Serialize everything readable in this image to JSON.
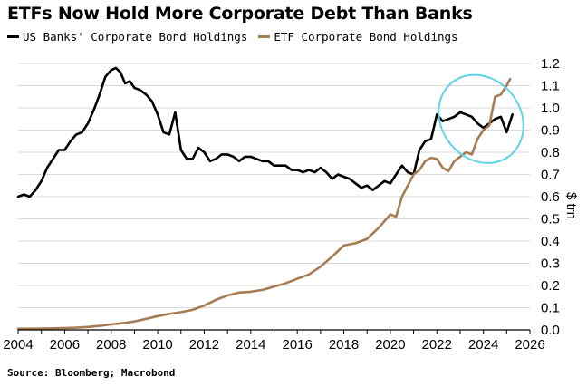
{
  "chart_data": {
    "type": "line",
    "title": "ETFs Now Hold More Corporate Debt Than Banks",
    "ylabel": "$ trn",
    "xlim": [
      2004,
      2026
    ],
    "ylim": [
      0.0,
      1.2
    ],
    "x_ticks": [
      2004,
      2006,
      2008,
      2010,
      2012,
      2014,
      2016,
      2018,
      2020,
      2022,
      2024,
      2026
    ],
    "x_tick_labels": [
      "2004",
      "2006",
      "2008",
      "2010",
      "2012",
      "2014",
      "2016",
      "2018",
      "2020",
      "2022",
      "2024",
      "2026"
    ],
    "y_ticks": [
      0.0,
      0.1,
      0.2,
      0.3,
      0.4,
      0.5,
      0.6,
      0.7,
      0.8,
      0.9,
      1.0,
      1.1,
      1.2
    ],
    "y_tick_labels": [
      "0.0",
      "0.1",
      "0.2",
      "0.3",
      "0.4",
      "0.5",
      "0.6",
      "0.7",
      "0.8",
      "0.9",
      "1.0",
      "1.1",
      "1.2"
    ],
    "grid": "horizontal",
    "legend_position": "top-left",
    "series": [
      {
        "name": "US Banks' Corporate Bond Holdings",
        "color": "#000000",
        "points": [
          [
            2004.0,
            0.6
          ],
          [
            2004.25,
            0.61
          ],
          [
            2004.5,
            0.6
          ],
          [
            2004.75,
            0.63
          ],
          [
            2005.0,
            0.67
          ],
          [
            2005.25,
            0.73
          ],
          [
            2005.5,
            0.77
          ],
          [
            2005.75,
            0.81
          ],
          [
            2006.0,
            0.81
          ],
          [
            2006.25,
            0.85
          ],
          [
            2006.5,
            0.88
          ],
          [
            2006.75,
            0.89
          ],
          [
            2007.0,
            0.93
          ],
          [
            2007.25,
            0.99
          ],
          [
            2007.5,
            1.06
          ],
          [
            2007.75,
            1.14
          ],
          [
            2008.0,
            1.17
          ],
          [
            2008.2,
            1.18
          ],
          [
            2008.4,
            1.16
          ],
          [
            2008.6,
            1.11
          ],
          [
            2008.8,
            1.12
          ],
          [
            2009.0,
            1.09
          ],
          [
            2009.25,
            1.08
          ],
          [
            2009.5,
            1.06
          ],
          [
            2009.75,
            1.03
          ],
          [
            2010.0,
            0.97
          ],
          [
            2010.25,
            0.89
          ],
          [
            2010.5,
            0.88
          ],
          [
            2010.75,
            0.98
          ],
          [
            2011.0,
            0.81
          ],
          [
            2011.25,
            0.77
          ],
          [
            2011.5,
            0.77
          ],
          [
            2011.75,
            0.82
          ],
          [
            2012.0,
            0.8
          ],
          [
            2012.25,
            0.76
          ],
          [
            2012.5,
            0.77
          ],
          [
            2012.75,
            0.79
          ],
          [
            2013.0,
            0.79
          ],
          [
            2013.25,
            0.78
          ],
          [
            2013.5,
            0.76
          ],
          [
            2013.75,
            0.78
          ],
          [
            2014.0,
            0.78
          ],
          [
            2014.25,
            0.77
          ],
          [
            2014.5,
            0.76
          ],
          [
            2014.75,
            0.76
          ],
          [
            2015.0,
            0.74
          ],
          [
            2015.25,
            0.74
          ],
          [
            2015.5,
            0.74
          ],
          [
            2015.75,
            0.72
          ],
          [
            2016.0,
            0.72
          ],
          [
            2016.25,
            0.71
          ],
          [
            2016.5,
            0.72
          ],
          [
            2016.75,
            0.71
          ],
          [
            2017.0,
            0.73
          ],
          [
            2017.25,
            0.71
          ],
          [
            2017.5,
            0.68
          ],
          [
            2017.75,
            0.7
          ],
          [
            2018.0,
            0.69
          ],
          [
            2018.25,
            0.68
          ],
          [
            2018.5,
            0.66
          ],
          [
            2018.75,
            0.64
          ],
          [
            2019.0,
            0.65
          ],
          [
            2019.25,
            0.63
          ],
          [
            2019.5,
            0.65
          ],
          [
            2019.75,
            0.67
          ],
          [
            2020.0,
            0.66
          ],
          [
            2020.25,
            0.7
          ],
          [
            2020.5,
            0.74
          ],
          [
            2020.75,
            0.71
          ],
          [
            2021.0,
            0.7
          ],
          [
            2021.25,
            0.81
          ],
          [
            2021.5,
            0.85
          ],
          [
            2021.75,
            0.86
          ],
          [
            2022.0,
            0.97
          ],
          [
            2022.25,
            0.94
          ],
          [
            2022.5,
            0.95
          ],
          [
            2022.75,
            0.96
          ],
          [
            2023.0,
            0.98
          ],
          [
            2023.25,
            0.97
          ],
          [
            2023.5,
            0.96
          ],
          [
            2023.75,
            0.93
          ],
          [
            2024.0,
            0.91
          ],
          [
            2024.25,
            0.93
          ],
          [
            2024.5,
            0.95
          ],
          [
            2024.75,
            0.96
          ],
          [
            2025.0,
            0.89
          ],
          [
            2025.25,
            0.97
          ]
        ]
      },
      {
        "name": "ETF Corporate Bond Holdings",
        "color": "#a67c52",
        "points": [
          [
            2004.0,
            0.005
          ],
          [
            2005.0,
            0.006
          ],
          [
            2006.0,
            0.008
          ],
          [
            2006.5,
            0.01
          ],
          [
            2007.0,
            0.013
          ],
          [
            2007.5,
            0.018
          ],
          [
            2008.0,
            0.025
          ],
          [
            2008.5,
            0.03
          ],
          [
            2009.0,
            0.038
          ],
          [
            2009.5,
            0.05
          ],
          [
            2010.0,
            0.062
          ],
          [
            2010.5,
            0.072
          ],
          [
            2011.0,
            0.08
          ],
          [
            2011.5,
            0.09
          ],
          [
            2012.0,
            0.11
          ],
          [
            2012.5,
            0.135
          ],
          [
            2013.0,
            0.155
          ],
          [
            2013.5,
            0.168
          ],
          [
            2014.0,
            0.172
          ],
          [
            2014.5,
            0.18
          ],
          [
            2015.0,
            0.195
          ],
          [
            2015.5,
            0.21
          ],
          [
            2016.0,
            0.23
          ],
          [
            2016.5,
            0.25
          ],
          [
            2017.0,
            0.285
          ],
          [
            2017.5,
            0.33
          ],
          [
            2018.0,
            0.38
          ],
          [
            2018.5,
            0.39
          ],
          [
            2019.0,
            0.41
          ],
          [
            2019.5,
            0.46
          ],
          [
            2020.0,
            0.52
          ],
          [
            2020.25,
            0.51
          ],
          [
            2020.5,
            0.6
          ],
          [
            2020.75,
            0.65
          ],
          [
            2021.0,
            0.7
          ],
          [
            2021.25,
            0.72
          ],
          [
            2021.5,
            0.76
          ],
          [
            2021.75,
            0.775
          ],
          [
            2022.0,
            0.77
          ],
          [
            2022.25,
            0.73
          ],
          [
            2022.5,
            0.715
          ],
          [
            2022.75,
            0.76
          ],
          [
            2023.0,
            0.78
          ],
          [
            2023.25,
            0.8
          ],
          [
            2023.5,
            0.79
          ],
          [
            2023.75,
            0.86
          ],
          [
            2024.0,
            0.9
          ],
          [
            2024.25,
            0.92
          ],
          [
            2024.5,
            1.05
          ],
          [
            2024.75,
            1.06
          ],
          [
            2025.0,
            1.1
          ],
          [
            2025.15,
            1.13
          ]
        ]
      }
    ],
    "annotations": [
      {
        "type": "ellipse",
        "color": "#5ed4ea",
        "center": [
          2023.9,
          0.95
        ],
        "semi_axes": [
          1.7,
          0.21
        ],
        "rotation_deg": -38
      }
    ],
    "source": "Source: Bloomberg; Macrobond"
  }
}
